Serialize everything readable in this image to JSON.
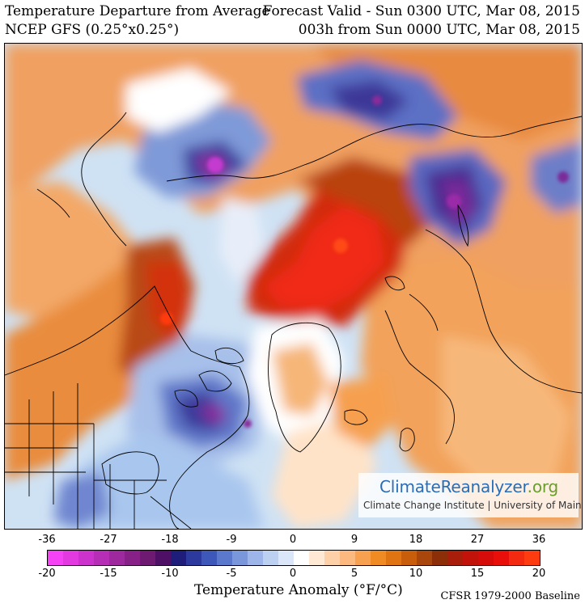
{
  "header": {
    "title": "Temperature Departure from Average",
    "model": "NCEP GFS (0.25°x0.25°)",
    "valid": "Forecast Valid - Sun 0300 UTC, Mar 08, 2015",
    "lead": "003h from Sun 0000 UTC, Mar 08, 2015"
  },
  "logo": {
    "climate": "Climate",
    "reanalyzer": "Reanalyzer",
    "org": ".org",
    "subtitle": "Climate Change Institute | University of Maine"
  },
  "legend": {
    "f_ticks": [
      "-36",
      "-27",
      "-18",
      "-9",
      "0",
      "9",
      "18",
      "27",
      "36"
    ],
    "c_ticks": [
      "-20",
      "-15",
      "-10",
      "-5",
      "0",
      "5",
      "10",
      "15",
      "20"
    ],
    "title": "Temperature Anomaly (°F/°C)",
    "baseline": "CFSR 1979-2000 Baseline",
    "colors": [
      "#f542f5",
      "#e23ae0",
      "#cc33cc",
      "#b52eb5",
      "#9e289e",
      "#872187",
      "#6e1a73",
      "#4d1066",
      "#1e1e7a",
      "#2b3a9c",
      "#3d58b8",
      "#5a78cc",
      "#7b97dc",
      "#9db5e8",
      "#bcd0f2",
      "#dbe7f8",
      "#ffffff",
      "#ffe8d4",
      "#fdd0a8",
      "#fbb87f",
      "#f7a04f",
      "#f08a22",
      "#e07312",
      "#c85d0c",
      "#a8460b",
      "#8c2f08",
      "#a81e0b",
      "#c2130b",
      "#d60c0a",
      "#e80f0a",
      "#f42a10",
      "#ff3b10"
    ]
  },
  "map": {
    "description_regions": []
  }
}
